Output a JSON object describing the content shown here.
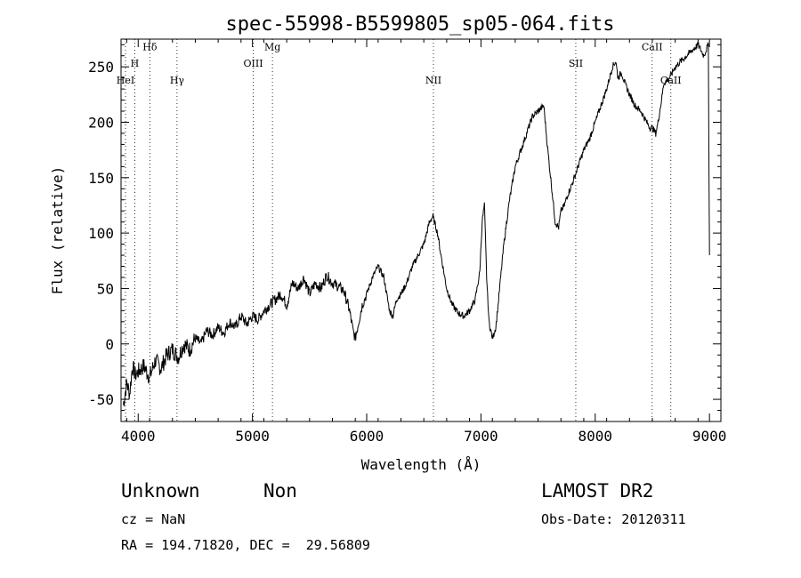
{
  "chart_data": {
    "type": "line",
    "title": "spec-55998-B5599805_sp05-064.fits",
    "xlabel": "Wavelength (Å)",
    "ylabel": "Flux (relative)",
    "xlim": [
      3850,
      9100
    ],
    "ylim": [
      -70,
      275
    ],
    "xticks": [
      4000,
      5000,
      6000,
      7000,
      8000,
      9000
    ],
    "yticks": [
      -50,
      0,
      50,
      100,
      150,
      200,
      250
    ],
    "grid": false,
    "series": [
      {
        "x": [
          3870,
          3900,
          3925,
          3950,
          3975,
          4000,
          4050,
          4100,
          4150,
          4200,
          4250,
          4300,
          4350,
          4400,
          4450,
          4500,
          4550,
          4600,
          4650,
          4700,
          4750,
          4800,
          4850,
          4900,
          4950,
          5000,
          5050,
          5100,
          5150,
          5200,
          5250,
          5300,
          5350,
          5400,
          5450,
          5500,
          5550,
          5600,
          5650,
          5700,
          5750,
          5800,
          5850,
          5880,
          5900,
          5930,
          5960,
          6000,
          6050,
          6100,
          6150,
          6200,
          6230,
          6260,
          6300,
          6350,
          6400,
          6450,
          6500,
          6550,
          6580,
          6620,
          6650,
          6700,
          6750,
          6800,
          6850,
          6900,
          6950,
          6990,
          7010,
          7030,
          7050,
          7070,
          7100,
          7130,
          7150,
          7200,
          7250,
          7300,
          7350,
          7400,
          7450,
          7500,
          7550,
          7580,
          7620,
          7650,
          7680,
          7700,
          7730,
          7760,
          7800,
          7850,
          7900,
          7950,
          8000,
          8050,
          8100,
          8150,
          8180,
          8200,
          8230,
          8260,
          8300,
          8350,
          8400,
          8450,
          8480,
          8500,
          8530,
          8550,
          8580,
          8600,
          8650,
          8700,
          8750,
          8800,
          8850,
          8900,
          8950,
          8990,
          9000
        ],
        "y": [
          -55,
          -35,
          -45,
          -20,
          -28,
          -25,
          -20,
          -30,
          -15,
          -22,
          -10,
          -5,
          -12,
          0,
          -5,
          5,
          0,
          12,
          8,
          15,
          10,
          20,
          15,
          25,
          18,
          25,
          22,
          30,
          35,
          40,
          45,
          35,
          55,
          50,
          60,
          45,
          55,
          50,
          62,
          55,
          52,
          48,
          30,
          12,
          5,
          20,
          35,
          45,
          60,
          70,
          60,
          30,
          25,
          40,
          45,
          55,
          70,
          80,
          90,
          110,
          115,
          100,
          80,
          50,
          35,
          28,
          25,
          30,
          40,
          65,
          110,
          125,
          60,
          20,
          5,
          15,
          35,
          90,
          130,
          160,
          175,
          190,
          205,
          210,
          215,
          180,
          140,
          110,
          105,
          120,
          125,
          135,
          145,
          160,
          175,
          185,
          200,
          215,
          230,
          250,
          255,
          240,
          245,
          235,
          225,
          215,
          210,
          200,
          195,
          195,
          190,
          200,
          220,
          235,
          240,
          250,
          255,
          260,
          265,
          270,
          260,
          270,
          80
        ],
        "color": "#000000"
      }
    ],
    "line_markers": [
      {
        "name": "HeI",
        "x": 3889,
        "label_y": 235
      },
      {
        "name": "H",
        "x": 3970,
        "label_y": 250
      },
      {
        "name": "Hδ",
        "x": 4102,
        "label_y": 265
      },
      {
        "name": "Hγ",
        "x": 4340,
        "label_y": 235
      },
      {
        "name": "OIII",
        "x": 5007,
        "label_y": 250
      },
      {
        "name": "Mg",
        "x": 5175,
        "label_y": 265
      },
      {
        "name": "NII",
        "x": 6584,
        "label_y": 235
      },
      {
        "name": "SII",
        "x": 7830,
        "label_y": 250
      },
      {
        "name": "CaII",
        "x": 8498,
        "label_y": 265
      },
      {
        "name": "CaII",
        "x": 8662,
        "label_y": 235
      }
    ]
  },
  "info": {
    "class": "Unknown",
    "subclass": "Non",
    "survey": "LAMOST DR2",
    "cz": "cz = NaN",
    "obs_date": "Obs-Date: 20120311",
    "radec": "RA = 194.71820, DEC =  29.56809"
  }
}
